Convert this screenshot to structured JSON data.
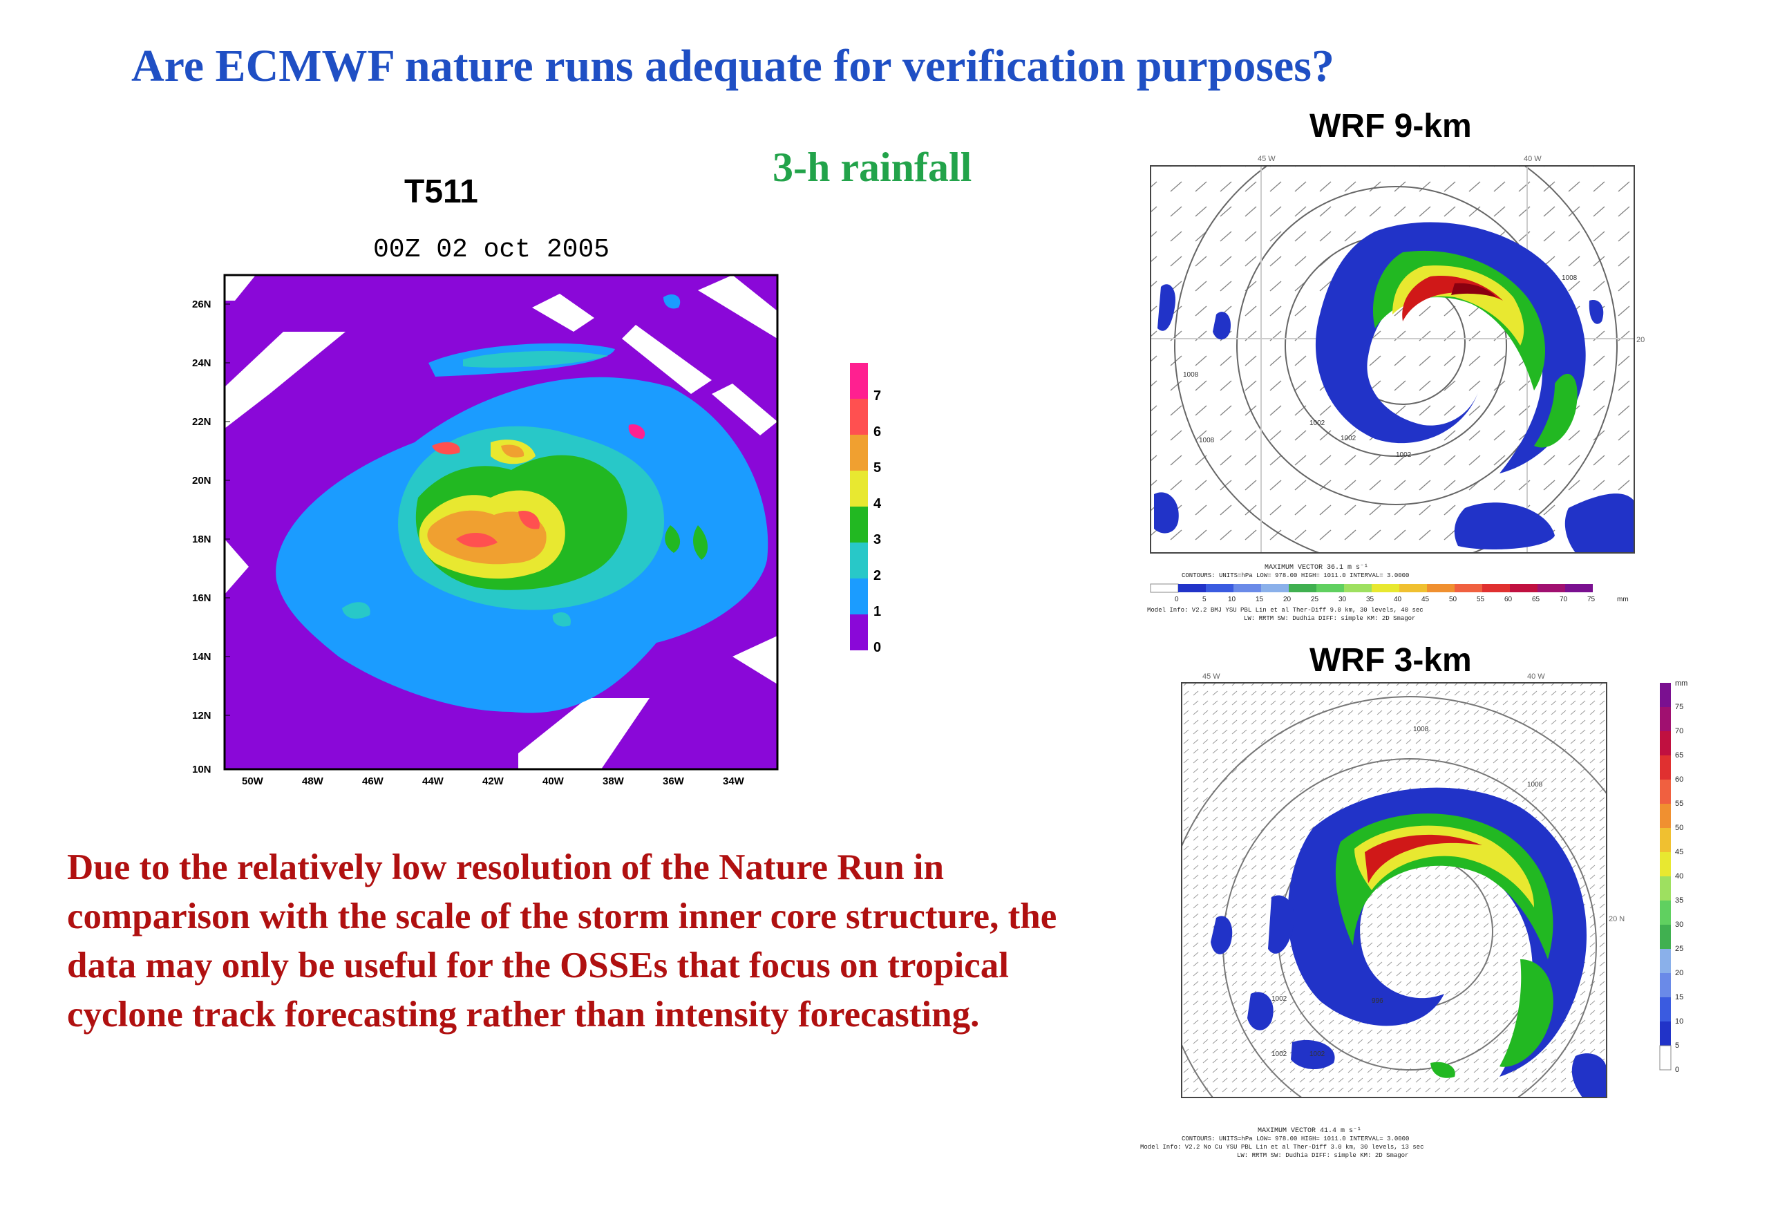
{
  "slide": {
    "title": "Are ECMWF nature runs adequate for verification purposes?",
    "subtitle": "3-h rainfall",
    "body": "Due to the relatively low resolution of the Nature Run in comparison with the scale of the storm inner core structure, the data may only be useful for the OSSEs that focus on tropical cyclone track forecasting rather than intensity forecasting."
  },
  "t511": {
    "label": "T511",
    "plot_title": "00Z 02 oct 2005",
    "y_ticks": [
      "26N",
      "24N",
      "22N",
      "20N",
      "18N",
      "16N",
      "14N",
      "12N",
      "10N"
    ],
    "x_ticks": [
      "50W",
      "48W",
      "46W",
      "44W",
      "42W",
      "40W",
      "38W",
      "36W",
      "34W"
    ],
    "colorbar": [
      "0",
      "1",
      "2",
      "3",
      "4",
      "5",
      "6",
      "7"
    ],
    "colors": [
      "#8a08d8",
      "#1b9cff",
      "#28c8c8",
      "#22b822",
      "#e8e830",
      "#f0a030",
      "#ff5050",
      "#ff2090"
    ]
  },
  "wrf9": {
    "label": "WRF 9-km",
    "axis_top_left": "45 W",
    "axis_top_right": "40 W",
    "axis_right": "20",
    "contours": [
      "1008",
      "1008",
      "1002",
      "1002",
      "1002",
      "1008"
    ],
    "maxvec": "MAXIMUM VECTOR 36.1 m s⁻¹",
    "info1": "CONTOURS: UNITS=hPa LOW= 978.00 HIGH= 1011.0 INTERVAL= 3.0000",
    "info2": "Model Info: V2.2   BMJ   YSU PBL  Lin et al  Ther-Diff 9.0 km, 30 levels, 40 sec",
    "info3": "LW: RRTM SW: Dudhia DIFF: simple KM: 2D Smagor",
    "scale": [
      "0",
      "5",
      "10",
      "15",
      "20",
      "25",
      "30",
      "35",
      "40",
      "45",
      "50",
      "55",
      "60",
      "65",
      "70",
      "75"
    ],
    "unit": "mm"
  },
  "wrf3": {
    "label": "WRF 3-km",
    "axis_top_left": "45 W",
    "axis_top_right": "40 W",
    "axis_right": "20 N",
    "contours": [
      "1008",
      "1008",
      "1002",
      "1002",
      "1002",
      "996"
    ],
    "maxvec": "MAXIMUM VECTOR 41.4 m s⁻¹",
    "info1": "CONTOURS: UNITS=hPa LOW= 978.00 HIGH= 1011.0 INTERVAL= 3.0000",
    "info2": "Model Info: V2.2   No Cu   YSU PBL  Lin et al  Ther-Diff 3.0 km, 30 levels, 13 sec",
    "info3": "LW: RRTM SW: Dudhia DIFF: simple KM: 2D Smagor",
    "scale": [
      "mm",
      "75",
      "70",
      "65",
      "60",
      "55",
      "50",
      "45",
      "40",
      "35",
      "30",
      "25",
      "20",
      "15",
      "10",
      "5",
      "0"
    ]
  }
}
